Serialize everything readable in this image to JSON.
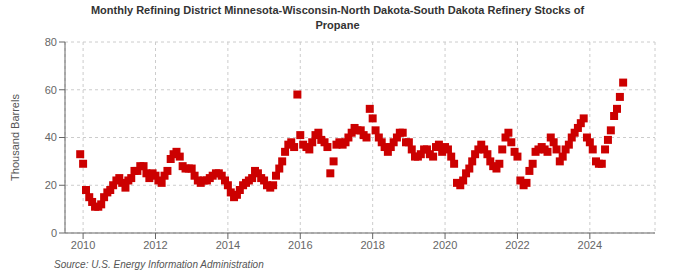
{
  "chart_data": {
    "type": "scatter",
    "title": "Monthly Refining District Minnesota-Wisconsin-North Dakota-South Dakota Refinery Stocks of\nPropane",
    "ylabel": "Thousand Barrels",
    "annotations": [
      "Source: U.S. Energy Information Administration"
    ],
    "color": "#cc0000",
    "marker": "square",
    "grid": true,
    "xlim": [
      2009.5,
      2025.8
    ],
    "xticks": [
      2010,
      2012,
      2014,
      2016,
      2018,
      2020,
      2022,
      2024
    ],
    "ylim": [
      0,
      80
    ],
    "yticks": [
      0,
      20,
      40,
      60,
      80
    ],
    "x": [
      2009.92,
      2010.0,
      2010.08,
      2010.17,
      2010.25,
      2010.33,
      2010.42,
      2010.5,
      2010.58,
      2010.67,
      2010.75,
      2010.83,
      2010.92,
      2011.0,
      2011.08,
      2011.17,
      2011.25,
      2011.33,
      2011.42,
      2011.5,
      2011.58,
      2011.67,
      2011.75,
      2011.83,
      2011.92,
      2012.0,
      2012.08,
      2012.17,
      2012.25,
      2012.33,
      2012.42,
      2012.5,
      2012.58,
      2012.67,
      2012.75,
      2012.83,
      2012.92,
      2013.0,
      2013.08,
      2013.17,
      2013.25,
      2013.33,
      2013.42,
      2013.5,
      2013.58,
      2013.67,
      2013.75,
      2013.83,
      2013.92,
      2014.0,
      2014.08,
      2014.17,
      2014.25,
      2014.33,
      2014.42,
      2014.5,
      2014.58,
      2014.67,
      2014.75,
      2014.83,
      2014.92,
      2015.0,
      2015.08,
      2015.17,
      2015.25,
      2015.33,
      2015.42,
      2015.5,
      2015.58,
      2015.67,
      2015.75,
      2015.83,
      2015.92,
      2016.0,
      2016.08,
      2016.17,
      2016.25,
      2016.33,
      2016.42,
      2016.5,
      2016.58,
      2016.67,
      2016.75,
      2016.83,
      2016.92,
      2017.0,
      2017.08,
      2017.17,
      2017.25,
      2017.33,
      2017.42,
      2017.5,
      2017.58,
      2017.67,
      2017.75,
      2017.83,
      2017.92,
      2018.0,
      2018.08,
      2018.17,
      2018.25,
      2018.33,
      2018.42,
      2018.5,
      2018.58,
      2018.67,
      2018.75,
      2018.83,
      2018.92,
      2019.0,
      2019.08,
      2019.17,
      2019.25,
      2019.33,
      2019.42,
      2019.5,
      2019.58,
      2019.67,
      2019.75,
      2019.83,
      2019.92,
      2020.0,
      2020.08,
      2020.17,
      2020.25,
      2020.33,
      2020.42,
      2020.5,
      2020.58,
      2020.67,
      2020.75,
      2020.83,
      2020.92,
      2021.0,
      2021.08,
      2021.17,
      2021.25,
      2021.33,
      2021.42,
      2021.5,
      2021.58,
      2021.67,
      2021.75,
      2021.83,
      2021.92,
      2022.0,
      2022.08,
      2022.17,
      2022.25,
      2022.33,
      2022.42,
      2022.5,
      2022.58,
      2022.67,
      2022.75,
      2022.83,
      2022.92,
      2023.0,
      2023.08,
      2023.17,
      2023.25,
      2023.33,
      2023.42,
      2023.5,
      2023.58,
      2023.67,
      2023.75,
      2023.83,
      2023.92,
      2024.0,
      2024.08,
      2024.17,
      2024.25,
      2024.33,
      2024.42,
      2024.5,
      2024.58,
      2024.67,
      2024.75,
      2024.83,
      2024.92
    ],
    "values": [
      33,
      29,
      18,
      15,
      13,
      11,
      11,
      12,
      15,
      17,
      18,
      20,
      22,
      23,
      21,
      19,
      22,
      23,
      26,
      26,
      28,
      28,
      25,
      23,
      25,
      24,
      22,
      21,
      24,
      26,
      31,
      33,
      34,
      32,
      28,
      27,
      27,
      27,
      24,
      22,
      21,
      22,
      22,
      23,
      24,
      25,
      25,
      24,
      22,
      20,
      17,
      15,
      16,
      18,
      20,
      21,
      22,
      23,
      26,
      25,
      23,
      22,
      20,
      19,
      20,
      24,
      27,
      30,
      34,
      37,
      38,
      36,
      58,
      41,
      37,
      36,
      35,
      38,
      41,
      42,
      39,
      38,
      36,
      25,
      30,
      37,
      38,
      37,
      38,
      40,
      42,
      44,
      43,
      43,
      41,
      40,
      52,
      48,
      43,
      40,
      38,
      36,
      34,
      36,
      38,
      40,
      42,
      42,
      38,
      38,
      35,
      32,
      32,
      33,
      35,
      35,
      33,
      32,
      36,
      37,
      34,
      36,
      35,
      32,
      29,
      21,
      20,
      22,
      25,
      27,
      30,
      33,
      35,
      37,
      35,
      33,
      30,
      28,
      27,
      29,
      35,
      40,
      42,
      38,
      34,
      32,
      22,
      20,
      21,
      26,
      29,
      34,
      35,
      36,
      35,
      34,
      40,
      38,
      35,
      30,
      32,
      35,
      37,
      40,
      42,
      44,
      46,
      48,
      40,
      38,
      35,
      30,
      29,
      29,
      35,
      39,
      43,
      49,
      52,
      57,
      63
    ]
  }
}
